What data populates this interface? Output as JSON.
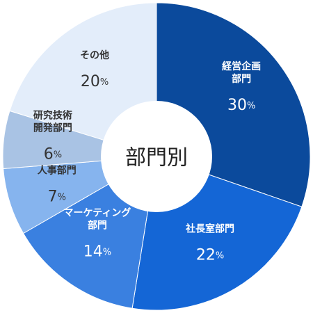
{
  "chart_data": {
    "type": "donut",
    "center_label": "部門別",
    "categories": [
      [
        "経営企画",
        "部門"
      ],
      [
        "社長室部門"
      ],
      [
        "マーケティング",
        "部門"
      ],
      [
        "人事部門"
      ],
      [
        "研究技術",
        "開発部門"
      ],
      [
        "その他"
      ]
    ],
    "values": [
      30,
      22,
      14,
      7,
      6,
      20
    ],
    "value_labels": [
      "30%",
      "22%",
      "14%",
      "7%",
      "6%",
      "20%"
    ],
    "colors": [
      "#0b4a9c",
      "#1466d6",
      "#3a80e0",
      "#86b4ee",
      "#a9c3e4",
      "#e3edfa"
    ]
  }
}
